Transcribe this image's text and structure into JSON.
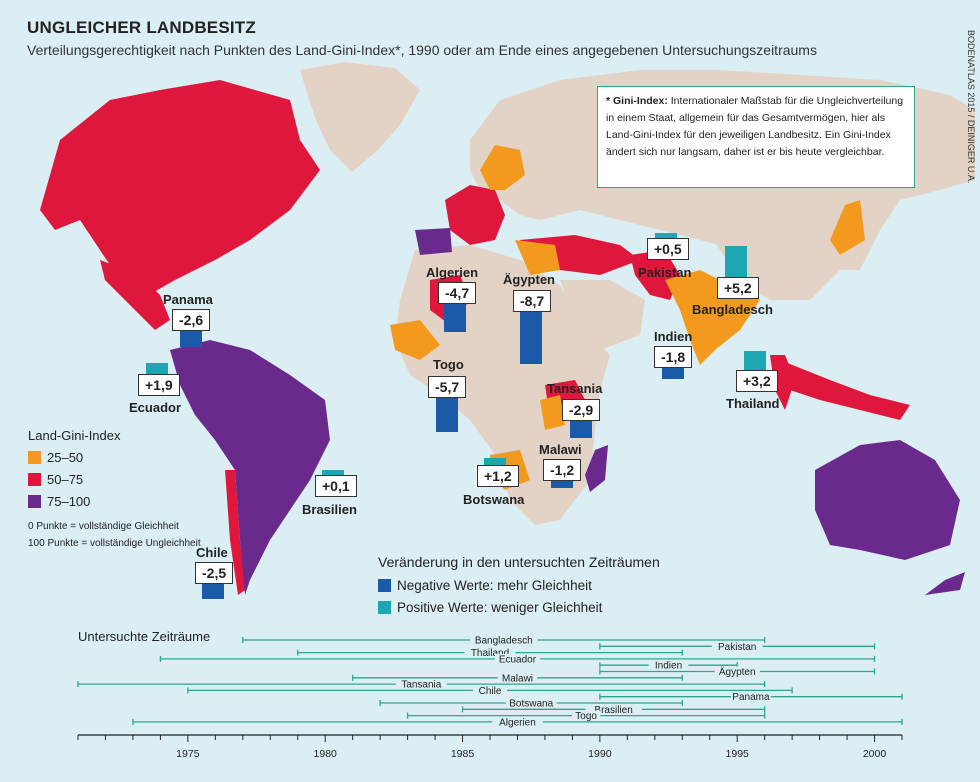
{
  "title": "UNGLEICHER LANDBESITZ",
  "subtitle": "Verteilungsgerechtigkeit nach Punkten des Land-Gini-Index*, 1990 oder am Ende eines angegebenen Untersuchungszeitraums",
  "source": "BODENATLAS 2015 / DEINIGER U.A.",
  "note": {
    "term": "* Gini-Index:",
    "text": "Internationaler Maßstab für die Ungleichverteilung in einem Staat, allgemein für das Gesamtvermögen, hier als Land-Gini-Index für den jeweiligen Landbesitz. Ein Gini-Index ändert sich nur langsam, daher ist er bis heute vergleichbar."
  },
  "legend_gini": {
    "title": "Land-Gini-Index",
    "items": [
      {
        "label": "25–50",
        "color": "#f39a1e"
      },
      {
        "label": "50–75",
        "color": "#e0173c"
      },
      {
        "label": "75–100",
        "color": "#6a2a8c"
      }
    ],
    "note1": "0 Punkte = vollständige Gleichheit",
    "note2": "100 Punkte = vollständige Ungleichheit"
  },
  "legend_change": {
    "title": "Veränderung in den untersuchten Zeiträumen",
    "negative": {
      "label": "Negative Werte: mehr Gleichheit",
      "color": "#1a5aa8"
    },
    "positive": {
      "label": "Positive Werte: weniger Gleichheit",
      "color": "#1ea6b3"
    }
  },
  "colors": {
    "ocean": "#dbeef3",
    "land_nodata": "#e3d3c6",
    "tier_25_50": "#f39a1e",
    "tier_50_75": "#e0173c",
    "tier_75_100": "#6a2a8c",
    "timeline": "#2ca68f"
  },
  "chart_data": [
    {
      "type": "bar",
      "title": "Veränderung in den untersuchten Zeiträumen",
      "categories": [
        "Panama",
        "Ecuador",
        "Chile",
        "Brasilien",
        "Algerien",
        "Togo",
        "Ägypten",
        "Botswana",
        "Tansania",
        "Malawi",
        "Pakistan",
        "Indien",
        "Bangladesch",
        "Thailand"
      ],
      "values": [
        -2.6,
        1.9,
        -2.5,
        0.1,
        -4.7,
        -5.7,
        -8.7,
        1.2,
        -2.9,
        -1.2,
        0.5,
        -1.8,
        5.2,
        3.2
      ],
      "labels": [
        "-2,6",
        "+1,9",
        "-2,5",
        "+0,1",
        "-4,7",
        "-5,7",
        "-8,7",
        "+1,2",
        "-2,9",
        "-1,2",
        "+0,5",
        "-1,8",
        "+5,2",
        "+3,2"
      ]
    },
    {
      "type": "timeline",
      "title": "Untersuchte Zeiträume",
      "xlim": [
        1971,
        2001
      ],
      "ticks": [
        "1975",
        "1980",
        "1985",
        "1990",
        "1995",
        "2000"
      ],
      "periods": [
        {
          "name": "Bangladesch",
          "start": 1977,
          "end": 1996
        },
        {
          "name": "Pakistan",
          "start": 1990,
          "end": 2000
        },
        {
          "name": "Thailand",
          "start": 1979,
          "end": 1993
        },
        {
          "name": "Ecuador",
          "start": 1974,
          "end": 2000
        },
        {
          "name": "Indien",
          "start": 1990,
          "end": 1995
        },
        {
          "name": "Ägypten",
          "start": 1990,
          "end": 2000
        },
        {
          "name": "Malawi",
          "start": 1981,
          "end": 1993
        },
        {
          "name": "Tansania",
          "start": 1971,
          "end": 1996
        },
        {
          "name": "Chile",
          "start": 1975,
          "end": 1997
        },
        {
          "name": "Panama",
          "start": 1990,
          "end": 2001
        },
        {
          "name": "Botswana",
          "start": 1982,
          "end": 1993
        },
        {
          "name": "Brasilien",
          "start": 1985,
          "end": 1996
        },
        {
          "name": "Togo",
          "start": 1983,
          "end": 1996
        },
        {
          "name": "Algerien",
          "start": 1973,
          "end": 2001
        }
      ]
    }
  ]
}
